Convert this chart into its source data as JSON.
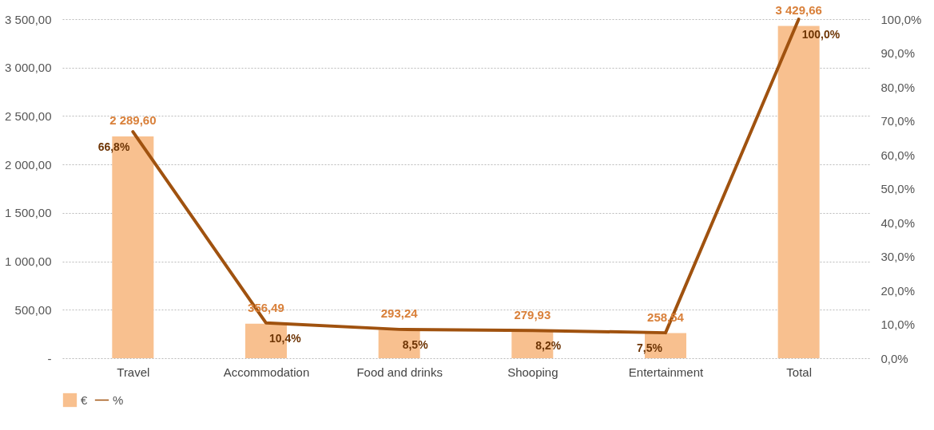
{
  "chart_data": {
    "type": "bar",
    "categories": [
      "Travel",
      "Accommodation",
      "Food and drinks",
      "Shooping",
      "Entertainment",
      "Total"
    ],
    "series": [
      {
        "name": "€",
        "color": "#f8c08f",
        "values": [
          2289.6,
          356.49,
          293.24,
          279.93,
          258.54,
          3429.66
        ],
        "value_labels": [
          "2 289,60",
          "356,49",
          "293,24",
          "279,93",
          "258,54",
          "3 429,66"
        ]
      },
      {
        "name": "%",
        "type": "line",
        "axis": "y2",
        "color": "#a0520f",
        "values": [
          66.8,
          10.4,
          8.5,
          8.2,
          7.5,
          100.0
        ],
        "value_labels": [
          "66,8%",
          "10,4%",
          "8,5%",
          "8,2%",
          "7,5%",
          "100,0%"
        ]
      }
    ],
    "ylim": [
      0,
      3500
    ],
    "yticks": [
      {
        "value": 0,
        "label": "-"
      },
      {
        "value": 500,
        "label": "500,00"
      },
      {
        "value": 1000,
        "label": "1 000,00"
      },
      {
        "value": 1500,
        "label": "1 500,00"
      },
      {
        "value": 2000,
        "label": "2 000,00"
      },
      {
        "value": 2500,
        "label": "2 500,00"
      },
      {
        "value": 3000,
        "label": "3 000,00"
      },
      {
        "value": 3500,
        "label": "3 500,00"
      }
    ],
    "y2lim": [
      0,
      100
    ],
    "y2ticks": [
      {
        "value": 0,
        "label": "0,0%"
      },
      {
        "value": 10,
        "label": "10,0%"
      },
      {
        "value": 20,
        "label": "20,0%"
      },
      {
        "value": 30,
        "label": "30,0%"
      },
      {
        "value": 40,
        "label": "40,0%"
      },
      {
        "value": 50,
        "label": "50,0%"
      },
      {
        "value": 60,
        "label": "60,0%"
      },
      {
        "value": 70,
        "label": "70,0%"
      },
      {
        "value": 80,
        "label": "80,0%"
      },
      {
        "value": 90,
        "label": "90,0%"
      },
      {
        "value": 100,
        "label": "100,0%"
      }
    ],
    "grid": "y",
    "legend": "bottom"
  }
}
